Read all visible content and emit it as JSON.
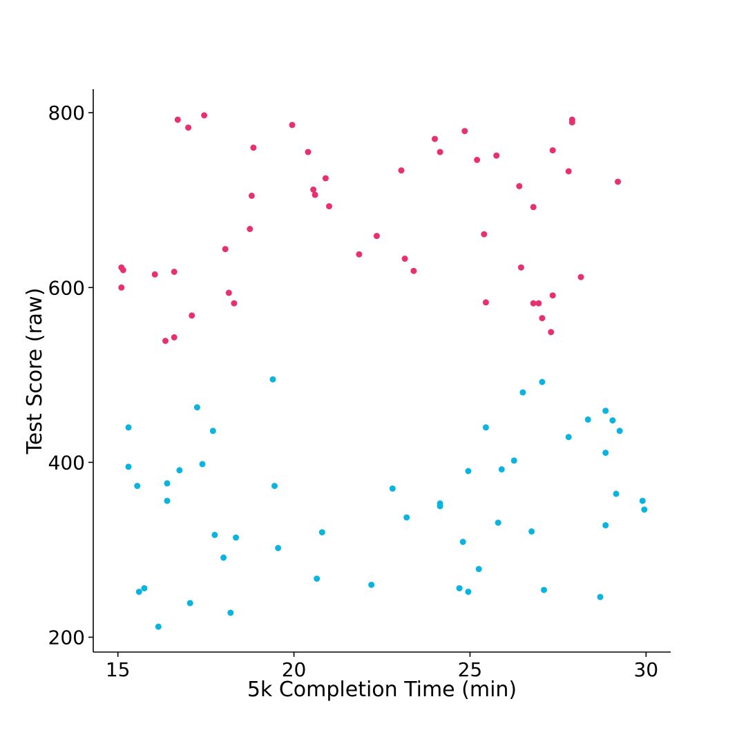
{
  "chart_data": {
    "type": "scatter",
    "title": "",
    "xlabel": "5k Completion Time (min)",
    "ylabel": "Test Score (raw)",
    "xlim": [
      14.3,
      30.7
    ],
    "ylim": [
      183,
      827
    ],
    "xticks": [
      15,
      20,
      25,
      30
    ],
    "yticks": [
      200,
      400,
      600,
      800
    ],
    "grid": false,
    "legend": "none",
    "series": [
      {
        "color": "#e8306f",
        "points": [
          [
            15.1,
            600
          ],
          [
            15.1,
            623
          ],
          [
            15.15,
            620
          ],
          [
            16.05,
            615
          ],
          [
            16.35,
            539
          ],
          [
            16.6,
            543
          ],
          [
            16.6,
            618
          ],
          [
            16.7,
            792
          ],
          [
            17.0,
            783
          ],
          [
            17.1,
            568
          ],
          [
            17.45,
            797
          ],
          [
            18.05,
            644
          ],
          [
            18.15,
            594
          ],
          [
            18.3,
            582
          ],
          [
            18.75,
            667
          ],
          [
            18.8,
            705
          ],
          [
            18.85,
            760
          ],
          [
            19.95,
            786
          ],
          [
            20.4,
            755
          ],
          [
            20.55,
            712
          ],
          [
            20.6,
            706
          ],
          [
            20.9,
            725
          ],
          [
            21.0,
            693
          ],
          [
            21.85,
            638
          ],
          [
            22.35,
            659
          ],
          [
            23.05,
            734
          ],
          [
            23.15,
            633
          ],
          [
            23.4,
            619
          ],
          [
            24.0,
            770
          ],
          [
            24.15,
            755
          ],
          [
            24.85,
            779
          ],
          [
            25.2,
            746
          ],
          [
            25.4,
            661
          ],
          [
            25.45,
            583
          ],
          [
            25.75,
            751
          ],
          [
            26.4,
            716
          ],
          [
            26.45,
            623
          ],
          [
            26.8,
            582
          ],
          [
            26.8,
            692
          ],
          [
            26.95,
            582
          ],
          [
            27.05,
            565
          ],
          [
            27.3,
            549
          ],
          [
            27.35,
            591
          ],
          [
            27.35,
            757
          ],
          [
            27.8,
            733
          ],
          [
            27.9,
            792
          ],
          [
            27.9,
            789
          ],
          [
            28.15,
            612
          ],
          [
            29.2,
            721
          ]
        ]
      },
      {
        "color": "#0ab4e0",
        "points": [
          [
            15.3,
            440
          ],
          [
            15.3,
            395
          ],
          [
            15.55,
            373
          ],
          [
            15.6,
            252
          ],
          [
            15.75,
            256
          ],
          [
            16.15,
            212
          ],
          [
            16.4,
            376
          ],
          [
            16.4,
            356
          ],
          [
            16.75,
            391
          ],
          [
            17.05,
            239
          ],
          [
            17.25,
            463
          ],
          [
            17.4,
            398
          ],
          [
            17.7,
            436
          ],
          [
            17.75,
            317
          ],
          [
            18.0,
            291
          ],
          [
            18.2,
            228
          ],
          [
            18.35,
            314
          ],
          [
            19.4,
            495
          ],
          [
            19.45,
            373
          ],
          [
            19.55,
            302
          ],
          [
            20.65,
            267
          ],
          [
            20.8,
            320
          ],
          [
            22.2,
            260
          ],
          [
            22.8,
            370
          ],
          [
            23.2,
            337
          ],
          [
            24.15,
            353
          ],
          [
            24.15,
            350
          ],
          [
            24.7,
            256
          ],
          [
            24.8,
            309
          ],
          [
            24.95,
            252
          ],
          [
            24.95,
            390
          ],
          [
            25.25,
            278
          ],
          [
            25.45,
            440
          ],
          [
            25.8,
            331
          ],
          [
            25.9,
            392
          ],
          [
            26.25,
            402
          ],
          [
            26.5,
            480
          ],
          [
            26.75,
            321
          ],
          [
            27.05,
            492
          ],
          [
            27.1,
            254
          ],
          [
            27.8,
            429
          ],
          [
            28.35,
            449
          ],
          [
            28.7,
            246
          ],
          [
            28.85,
            459
          ],
          [
            28.85,
            411
          ],
          [
            28.85,
            328
          ],
          [
            29.05,
            448
          ],
          [
            29.15,
            364
          ],
          [
            29.25,
            436
          ],
          [
            29.9,
            356
          ],
          [
            29.95,
            346
          ]
        ]
      }
    ]
  }
}
